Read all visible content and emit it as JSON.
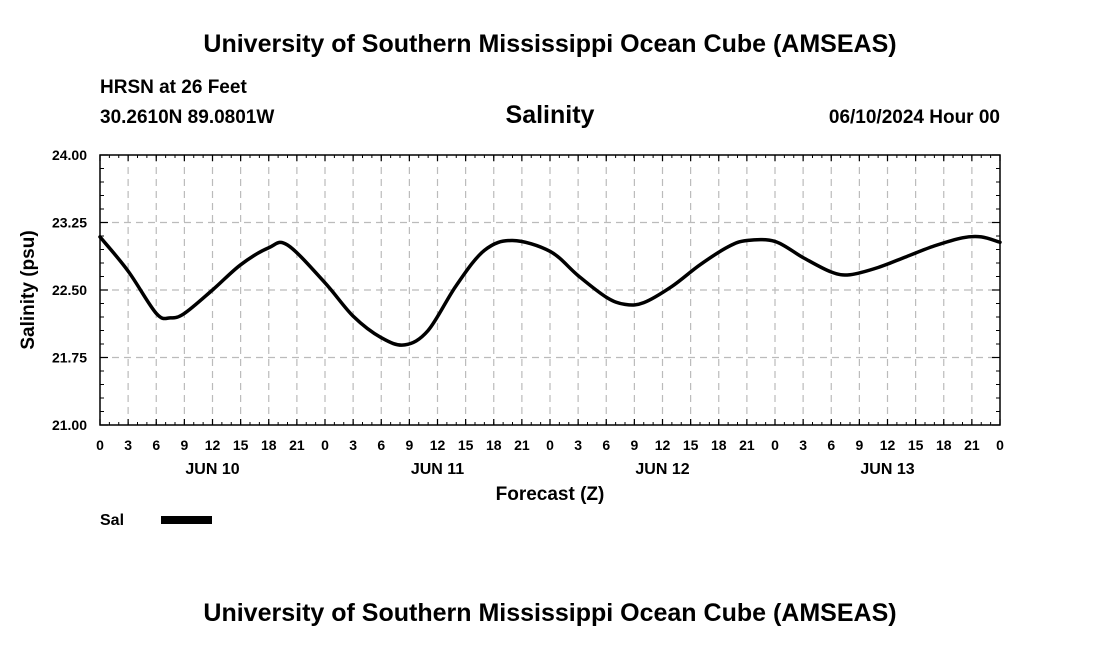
{
  "header": {
    "title_top": "University of Southern Mississippi Ocean Cube (AMSEAS)",
    "station": "HRSN at 26 Feet",
    "coords": "30.2610N  89.0801W",
    "variable": "Salinity",
    "datetime": "06/10/2024 Hour 00"
  },
  "footer": {
    "title_bottom": "University of Southern Mississippi Ocean Cube (AMSEAS)"
  },
  "colors": {
    "line": "#000000",
    "grid": "#bbbbbb",
    "background": "#ffffff"
  },
  "chart_data": {
    "type": "line",
    "ylabel": "Salinity (psu)",
    "xlabel": "Forecast (Z)",
    "ylim": [
      21.0,
      24.0
    ],
    "yticks": [
      "21.00",
      "21.75",
      "22.50",
      "23.25",
      "24.00"
    ],
    "xlim": [
      0,
      96
    ],
    "xtick_labels": [
      "0",
      "3",
      "6",
      "9",
      "12",
      "15",
      "18",
      "21",
      "0",
      "3",
      "6",
      "9",
      "12",
      "15",
      "18",
      "21",
      "0",
      "3",
      "6",
      "9",
      "12",
      "15",
      "18",
      "21",
      "0",
      "3",
      "6",
      "9",
      "12",
      "15",
      "18",
      "21",
      "0"
    ],
    "day_labels": [
      {
        "label": "JUN 10",
        "hour": 12
      },
      {
        "label": "JUN 11",
        "hour": 36
      },
      {
        "label": "JUN 12",
        "hour": 60
      },
      {
        "label": "JUN 13",
        "hour": 84
      }
    ],
    "legend": [
      {
        "name": "Sal"
      }
    ],
    "series": [
      {
        "name": "Sal",
        "x": [
          0,
          3,
          6,
          7.5,
          9,
          12,
          15,
          18,
          20,
          24,
          27,
          30,
          32.5,
          35,
          38,
          41,
          44,
          48,
          51,
          54,
          56,
          58,
          61,
          64,
          67,
          69,
          72,
          75,
          78,
          80,
          83,
          86,
          89,
          92,
          94,
          96
        ],
        "values": [
          23.09,
          22.71,
          22.24,
          22.19,
          22.24,
          22.5,
          22.78,
          22.97,
          23.0,
          22.58,
          22.21,
          21.97,
          21.89,
          22.05,
          22.55,
          22.94,
          23.05,
          22.93,
          22.66,
          22.42,
          22.34,
          22.36,
          22.54,
          22.78,
          22.98,
          23.05,
          23.04,
          22.86,
          22.7,
          22.67,
          22.75,
          22.87,
          22.99,
          23.08,
          23.09,
          23.03
        ]
      }
    ]
  }
}
